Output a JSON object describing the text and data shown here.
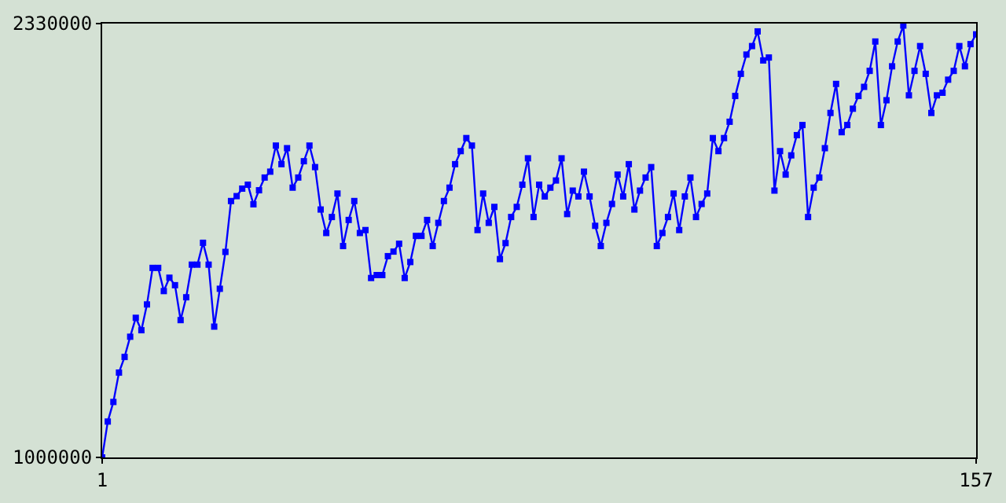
{
  "chart_data": {
    "type": "line",
    "color": "#0000ff",
    "marker": "square",
    "line_style": "solid",
    "x": [
      1,
      2,
      3,
      4,
      5,
      6,
      7,
      8,
      9,
      10,
      11,
      12,
      13,
      14,
      15,
      16,
      17,
      18,
      19,
      20,
      21,
      22,
      23,
      24,
      25,
      26,
      27,
      28,
      29,
      30,
      31,
      32,
      33,
      34,
      35,
      36,
      37,
      38,
      39,
      40,
      41,
      42,
      43,
      44,
      45,
      46,
      47,
      48,
      49,
      50,
      51,
      52,
      53,
      54,
      55,
      56,
      57,
      58,
      59,
      60,
      61,
      62,
      63,
      64,
      65,
      66,
      67,
      68,
      69,
      70,
      71,
      72,
      73,
      74,
      75,
      76,
      77,
      78,
      79,
      80,
      81,
      82,
      83,
      84,
      85,
      86,
      87,
      88,
      89,
      90,
      91,
      92,
      93,
      94,
      95,
      96,
      97,
      98,
      99,
      100,
      101,
      102,
      103,
      104,
      105,
      106,
      107,
      108,
      109,
      110,
      111,
      112,
      113,
      114,
      115,
      116,
      117,
      118,
      119,
      120,
      121,
      122,
      123,
      124,
      125,
      126,
      127,
      128,
      129,
      130,
      131,
      132,
      133,
      134,
      135,
      136,
      137,
      138,
      139,
      140,
      141,
      142,
      143,
      144,
      145,
      146,
      147,
      148,
      149,
      150,
      151,
      152,
      153,
      154,
      155,
      156,
      157
    ],
    "values": [
      1000000,
      1110000,
      1170000,
      1260000,
      1308000,
      1370000,
      1428000,
      1390000,
      1469000,
      1581000,
      1581000,
      1510000,
      1551000,
      1528000,
      1421000,
      1491000,
      1591000,
      1591000,
      1658000,
      1591000,
      1401000,
      1517000,
      1630000,
      1786000,
      1801000,
      1824000,
      1836000,
      1776000,
      1819000,
      1858000,
      1876000,
      1956000,
      1899000,
      1948000,
      1827000,
      1858000,
      1908000,
      1956000,
      1890000,
      1760000,
      1688000,
      1737000,
      1809000,
      1648000,
      1728000,
      1786000,
      1688000,
      1697000,
      1550000,
      1559000,
      1559000,
      1617000,
      1631000,
      1655000,
      1550000,
      1599000,
      1679000,
      1679000,
      1728000,
      1648000,
      1719000,
      1786000,
      1827000,
      1899000,
      1939000,
      1979000,
      1956000,
      1697000,
      1809000,
      1719000,
      1768000,
      1608000,
      1657000,
      1737000,
      1768000,
      1836000,
      1917000,
      1737000,
      1836000,
      1800000,
      1827000,
      1849000,
      1917000,
      1746000,
      1818000,
      1800000,
      1876000,
      1800000,
      1710000,
      1648000,
      1719000,
      1777000,
      1867000,
      1800000,
      1899000,
      1760000,
      1818000,
      1858000,
      1890000,
      1648000,
      1688000,
      1737000,
      1809000,
      1697000,
      1800000,
      1858000,
      1737000,
      1777000,
      1809000,
      1979000,
      1939000,
      1979000,
      2029000,
      2108000,
      2176000,
      2235000,
      2261000,
      2306000,
      2217000,
      2226000,
      1818000,
      1939000,
      1867000,
      1926000,
      1988000,
      2019000,
      1737000,
      1827000,
      1858000,
      1948000,
      2056000,
      2145000,
      1997000,
      2019000,
      2069000,
      2108000,
      2136000,
      2185000,
      2275000,
      2019000,
      2095000,
      2199000,
      2275000,
      2324000,
      2110000,
      2185000,
      2261000,
      2176000,
      2056000,
      2110000,
      2118000,
      2158000,
      2185000,
      2261000,
      2199000,
      2267000,
      2297000
    ],
    "xlim": [
      1,
      157
    ],
    "xticks": [
      1,
      157
    ],
    "ylim": [
      1000000,
      2330000
    ],
    "yticks": [
      1000000,
      2330000
    ]
  }
}
